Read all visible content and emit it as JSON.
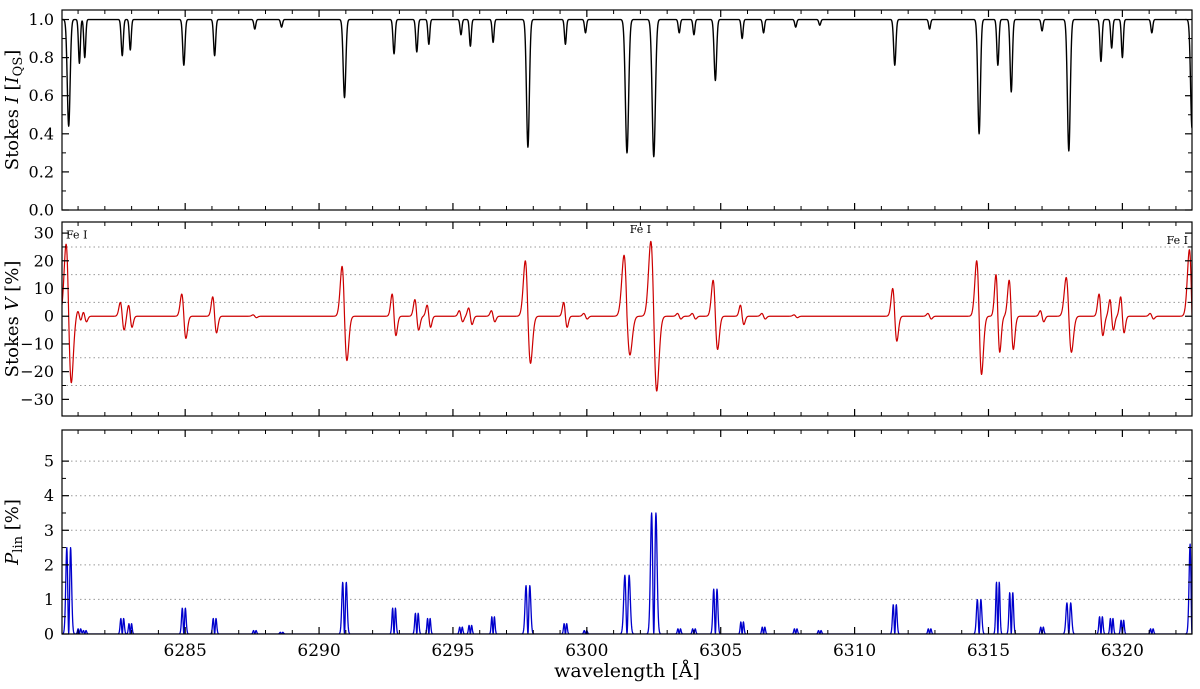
{
  "chart_data": {
    "type": "line",
    "title": "",
    "xlabel": "wavelength [Å]",
    "xlim": [
      6280.4,
      6322.6
    ],
    "x_ticks": {
      "values": [
        6285,
        6290,
        6295,
        6300,
        6305,
        6310,
        6315,
        6320
      ],
      "labels": [
        "6285",
        "6290",
        "6295",
        "6300",
        "6305",
        "6310",
        "6315",
        "6320"
      ]
    },
    "x_minor_step": 1,
    "panels": [
      {
        "name": "stokes-i",
        "label_text": "Stokes I [I_QS]",
        "label_segments": [
          {
            "t": "Stokes "
          },
          {
            "t": "I",
            "style": "italic"
          },
          {
            "t": " ["
          },
          {
            "t": "I",
            "style": "italic"
          },
          {
            "t": "QS",
            "style": "sub"
          },
          {
            "t": "]"
          }
        ],
        "color": "#000000",
        "line_width": 1.4,
        "ylim": [
          0,
          1.05
        ],
        "yticks": {
          "values": [
            0,
            0.2,
            0.4,
            0.6,
            0.8,
            1.0
          ],
          "labels": [
            "0.0",
            "0.2",
            "0.4",
            "0.6",
            "0.8",
            "1.0"
          ]
        },
        "y_minor_step": 0.1,
        "grid": []
      },
      {
        "name": "stokes-v",
        "label_text": "Stokes V [%]",
        "label_segments": [
          {
            "t": "Stokes "
          },
          {
            "t": "V",
            "style": "italic"
          },
          {
            "t": " [%]"
          }
        ],
        "color": "#cc0000",
        "line_width": 1.2,
        "ylim": [
          -36,
          34
        ],
        "yticks": {
          "values": [
            -30,
            -20,
            -10,
            0,
            10,
            20,
            30
          ],
          "labels": [
            "−30",
            "−20",
            "−10",
            "0",
            "10",
            "20",
            "30"
          ]
        },
        "y_minor_step": 5,
        "grid": [
          -25,
          -15,
          -5,
          5,
          15,
          25
        ]
      },
      {
        "name": "p-lin",
        "label_text": "P_lin [%]",
        "label_segments": [
          {
            "t": "P",
            "style": "italic"
          },
          {
            "t": "lin",
            "style": "sub"
          },
          {
            "t": " [%]"
          }
        ],
        "color": "#0000cc",
        "line_width": 1.3,
        "ylim": [
          0,
          5.9
        ],
        "yticks": {
          "values": [
            0,
            1,
            2,
            3,
            4,
            5
          ],
          "labels": [
            "0",
            "1",
            "2",
            "3",
            "4",
            "5"
          ]
        },
        "y_minor_step": 0.5,
        "grid": [
          1,
          2,
          3,
          4,
          5
        ]
      }
    ],
    "annotations": [
      {
        "label": "Fe I",
        "wl": 6280.95,
        "v": 28
      },
      {
        "label": "Fe I",
        "wl": 6302.0,
        "v": 30
      },
      {
        "label": "Fe I",
        "wl": 6322.05,
        "v": 26
      }
    ],
    "lines": [
      {
        "wl": 6280.65,
        "i_depth": 0.56,
        "sigma": 0.075,
        "v_plus": 26,
        "v_minus": 24,
        "p_lin": 2.5
      },
      {
        "wl": 6281.05,
        "i_depth": 0.23,
        "sigma": 0.05,
        "v_plus": 2,
        "v_minus": 2,
        "p_lin": 0.15
      },
      {
        "wl": 6281.25,
        "i_depth": 0.2,
        "sigma": 0.05,
        "v_plus": 2,
        "v_minus": 2,
        "p_lin": 0.1
      },
      {
        "wl": 6282.65,
        "i_depth": 0.19,
        "sigma": 0.055,
        "v_plus": 5,
        "v_minus": 5,
        "p_lin": 0.45
      },
      {
        "wl": 6282.95,
        "i_depth": 0.16,
        "sigma": 0.05,
        "v_plus": 4,
        "v_minus": 4,
        "p_lin": 0.3
      },
      {
        "wl": 6284.95,
        "i_depth": 0.24,
        "sigma": 0.06,
        "v_plus": 8,
        "v_minus": 8,
        "p_lin": 0.75
      },
      {
        "wl": 6286.1,
        "i_depth": 0.19,
        "sigma": 0.055,
        "v_plus": 7,
        "v_minus": 6,
        "p_lin": 0.45
      },
      {
        "wl": 6287.6,
        "i_depth": 0.05,
        "sigma": 0.05,
        "v_plus": 0.5,
        "v_minus": 0.5,
        "p_lin": 0.1
      },
      {
        "wl": 6288.6,
        "i_depth": 0.04,
        "sigma": 0.05,
        "v_plus": 0,
        "v_minus": 0,
        "p_lin": 0.05
      },
      {
        "wl": 6290.95,
        "i_depth": 0.41,
        "sigma": 0.07,
        "v_plus": 18,
        "v_minus": 16,
        "p_lin": 1.5
      },
      {
        "wl": 6292.8,
        "i_depth": 0.18,
        "sigma": 0.055,
        "v_plus": 8,
        "v_minus": 7,
        "p_lin": 0.75
      },
      {
        "wl": 6293.65,
        "i_depth": 0.17,
        "sigma": 0.055,
        "v_plus": 6,
        "v_minus": 5,
        "p_lin": 0.6
      },
      {
        "wl": 6294.1,
        "i_depth": 0.13,
        "sigma": 0.05,
        "v_plus": 4,
        "v_minus": 4,
        "p_lin": 0.45
      },
      {
        "wl": 6295.3,
        "i_depth": 0.08,
        "sigma": 0.05,
        "v_plus": 2,
        "v_minus": 2,
        "p_lin": 0.2
      },
      {
        "wl": 6295.65,
        "i_depth": 0.14,
        "sigma": 0.05,
        "v_plus": 3,
        "v_minus": 3,
        "p_lin": 0.25
      },
      {
        "wl": 6296.5,
        "i_depth": 0.12,
        "sigma": 0.05,
        "v_plus": 2,
        "v_minus": 2,
        "p_lin": 0.5
      },
      {
        "wl": 6297.8,
        "i_depth": 0.67,
        "sigma": 0.075,
        "v_plus": 20,
        "v_minus": 17,
        "p_lin": 1.4
      },
      {
        "wl": 6299.2,
        "i_depth": 0.13,
        "sigma": 0.05,
        "v_plus": 5,
        "v_minus": 4,
        "p_lin": 0.3
      },
      {
        "wl": 6299.95,
        "i_depth": 0.07,
        "sigma": 0.05,
        "v_plus": 1,
        "v_minus": 1,
        "p_lin": 0.1
      },
      {
        "wl": 6301.5,
        "i_depth": 0.7,
        "sigma": 0.085,
        "v_plus": 22,
        "v_minus": 14,
        "p_lin": 1.7
      },
      {
        "wl": 6302.5,
        "i_depth": 0.72,
        "sigma": 0.085,
        "v_plus": 27,
        "v_minus": 27,
        "p_lin": 3.5
      },
      {
        "wl": 6303.45,
        "i_depth": 0.07,
        "sigma": 0.05,
        "v_plus": 1,
        "v_minus": 1,
        "p_lin": 0.15
      },
      {
        "wl": 6304.0,
        "i_depth": 0.08,
        "sigma": 0.05,
        "v_plus": 1,
        "v_minus": 1,
        "p_lin": 0.15
      },
      {
        "wl": 6304.8,
        "i_depth": 0.32,
        "sigma": 0.065,
        "v_plus": 13,
        "v_minus": 12,
        "p_lin": 1.3
      },
      {
        "wl": 6305.8,
        "i_depth": 0.1,
        "sigma": 0.05,
        "v_plus": 4,
        "v_minus": 3,
        "p_lin": 0.35
      },
      {
        "wl": 6306.6,
        "i_depth": 0.07,
        "sigma": 0.05,
        "v_plus": 1,
        "v_minus": 1,
        "p_lin": 0.2
      },
      {
        "wl": 6307.8,
        "i_depth": 0.04,
        "sigma": 0.05,
        "v_plus": 0.5,
        "v_minus": 0.5,
        "p_lin": 0.15
      },
      {
        "wl": 6308.7,
        "i_depth": 0.03,
        "sigma": 0.05,
        "v_plus": 0,
        "v_minus": 0,
        "p_lin": 0.1
      },
      {
        "wl": 6311.5,
        "i_depth": 0.24,
        "sigma": 0.06,
        "v_plus": 10,
        "v_minus": 9,
        "p_lin": 0.85
      },
      {
        "wl": 6312.8,
        "i_depth": 0.05,
        "sigma": 0.05,
        "v_plus": 1,
        "v_minus": 1,
        "p_lin": 0.15
      },
      {
        "wl": 6314.65,
        "i_depth": 0.6,
        "sigma": 0.07,
        "v_plus": 20,
        "v_minus": 21,
        "p_lin": 1.0
      },
      {
        "wl": 6315.35,
        "i_depth": 0.24,
        "sigma": 0.055,
        "v_plus": 15,
        "v_minus": 13,
        "p_lin": 1.5
      },
      {
        "wl": 6315.85,
        "i_depth": 0.38,
        "sigma": 0.06,
        "v_plus": 13,
        "v_minus": 12,
        "p_lin": 1.2
      },
      {
        "wl": 6317.0,
        "i_depth": 0.06,
        "sigma": 0.05,
        "v_plus": 2,
        "v_minus": 2,
        "p_lin": 0.2
      },
      {
        "wl": 6318.0,
        "i_depth": 0.69,
        "sigma": 0.075,
        "v_plus": 14,
        "v_minus": 13,
        "p_lin": 0.9
      },
      {
        "wl": 6319.2,
        "i_depth": 0.22,
        "sigma": 0.055,
        "v_plus": 8,
        "v_minus": 7,
        "p_lin": 0.5
      },
      {
        "wl": 6319.6,
        "i_depth": 0.15,
        "sigma": 0.05,
        "v_plus": 6,
        "v_minus": 5,
        "p_lin": 0.45
      },
      {
        "wl": 6320.0,
        "i_depth": 0.2,
        "sigma": 0.05,
        "v_plus": 7,
        "v_minus": 6,
        "p_lin": 0.4
      },
      {
        "wl": 6321.1,
        "i_depth": 0.07,
        "sigma": 0.05,
        "v_plus": 1,
        "v_minus": 1,
        "p_lin": 0.15
      },
      {
        "wl": 6322.6,
        "i_depth": 0.57,
        "sigma": 0.075,
        "v_plus": 24,
        "v_minus": 21,
        "p_lin": 2.6
      }
    ]
  }
}
